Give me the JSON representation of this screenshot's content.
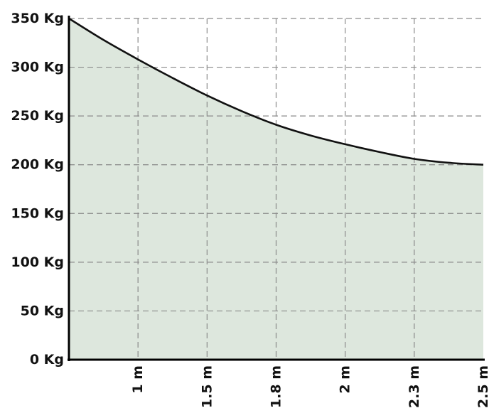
{
  "chart_data": {
    "type": "area",
    "title": "",
    "xlabel": "",
    "ylabel": "",
    "xlim": [
      0,
      6
    ],
    "ylim": [
      0,
      350
    ],
    "grid": true,
    "x_ticks": [
      {
        "pos": 1,
        "label": "1 m"
      },
      {
        "pos": 2,
        "label": "1.5 m"
      },
      {
        "pos": 3,
        "label": "1.8 m"
      },
      {
        "pos": 4,
        "label": "2 m"
      },
      {
        "pos": 5,
        "label": "2.3 m"
      },
      {
        "pos": 6,
        "label": "2.5 m"
      }
    ],
    "y_ticks": [
      {
        "value": 0,
        "label": "0 Kg"
      },
      {
        "value": 50,
        "label": "50 Kg"
      },
      {
        "value": 100,
        "label": "100 Kg"
      },
      {
        "value": 150,
        "label": "150 Kg"
      },
      {
        "value": 200,
        "label": "200 Kg"
      },
      {
        "value": 250,
        "label": "250 Kg"
      },
      {
        "value": 300,
        "label": "300 Kg"
      },
      {
        "value": 350,
        "label": "350 Kg"
      }
    ],
    "series": [
      {
        "x": [
          0,
          0.5,
          1,
          1.5,
          2,
          2.5,
          3,
          3.5,
          4,
          4.5,
          5,
          5.5,
          6
        ],
        "values": [
          350,
          328,
          308,
          289,
          271,
          255,
          241,
          230,
          221,
          213,
          206,
          202,
          200
        ]
      }
    ],
    "colors": {
      "fill": "#dde7dd",
      "line": "#111111",
      "grid": "#8a8a8a",
      "axis": "#000000"
    }
  }
}
